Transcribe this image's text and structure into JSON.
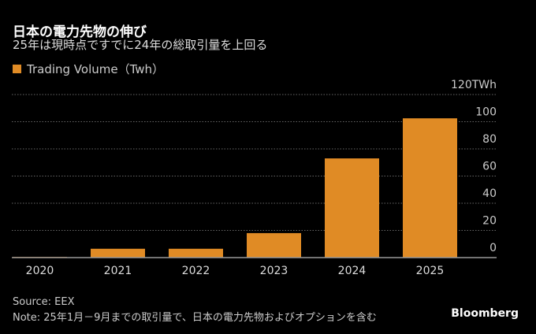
{
  "chart_data": {
    "type": "bar",
    "title": "日本の電力先物の伸び",
    "subtitle": "25年は現時点ですでに24年の総取引量を上回る",
    "legend": "Trading Volume（Twh）",
    "categories": [
      "2020",
      "2021",
      "2022",
      "2023",
      "2024",
      "2025"
    ],
    "values": [
      0.5,
      6.5,
      6.5,
      18,
      73,
      102.5
    ],
    "yticks": [
      "0",
      "20",
      "40",
      "60",
      "80",
      "100",
      "120TWh"
    ],
    "ytick_values": [
      0,
      20,
      40,
      60,
      80,
      100,
      120
    ],
    "ylim": [
      0,
      120
    ],
    "grid": true,
    "bar_color": "#e08b25",
    "legend_placement": "top-left"
  },
  "footer": {
    "source": "Source: EEX",
    "note": "Note: 25年1月－9月までの取引量で、日本の電力先物およびオプションを含む",
    "logo": "Bloomberg"
  }
}
